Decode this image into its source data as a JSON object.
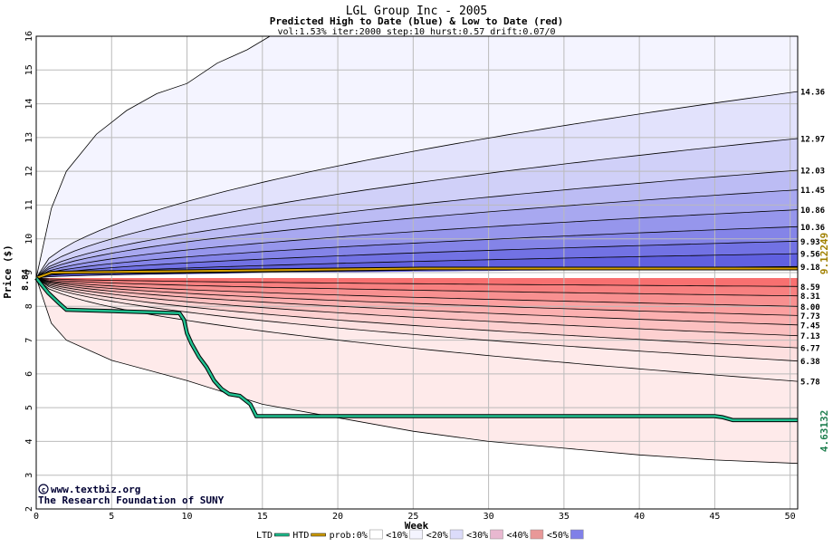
{
  "chart_data": {
    "type": "area",
    "title": "LGL Group Inc - 2005",
    "subtitle": "Predicted High to Date (blue) &  Low to Date (red)",
    "params": "vol:1.53% iter:2000 step:10 hurst:0.57 drift:0.07/0",
    "xlabel": "Week",
    "ylabel": "Price ($)",
    "xlim": [
      0,
      50.5
    ],
    "ylim": [
      2,
      16
    ],
    "x_ticks": [
      0,
      5,
      10,
      15,
      20,
      25,
      30,
      35,
      40,
      45,
      50
    ],
    "y_ticks": [
      2,
      3,
      4,
      5,
      6,
      7,
      8,
      9,
      10,
      11,
      12,
      13,
      14,
      15,
      16
    ],
    "grid": true,
    "start_price": 8.84,
    "start_price_label": "8.84",
    "high_bands": [
      {
        "end": 14.36,
        "label": "14.36"
      },
      {
        "end": 12.97,
        "label": "12.97"
      },
      {
        "end": 12.03,
        "label": "12.03"
      },
      {
        "end": 11.45,
        "label": "11.45"
      },
      {
        "end": 10.86,
        "label": "10.86"
      },
      {
        "end": 10.36,
        "label": "10.36"
      },
      {
        "end": 9.93,
        "label": "9.93"
      },
      {
        "end": 9.56,
        "label": "9.56"
      },
      {
        "end": 9.18,
        "label": "9.18"
      }
    ],
    "low_bands": [
      {
        "end": 8.59,
        "label": "8.59"
      },
      {
        "end": 8.31,
        "label": "8.31"
      },
      {
        "end": 8.0,
        "label": "8.00"
      },
      {
        "end": 7.73,
        "label": "7.73"
      },
      {
        "end": 7.45,
        "label": "7.45"
      },
      {
        "end": 7.13,
        "label": "7.13"
      },
      {
        "end": 6.77,
        "label": "6.77"
      },
      {
        "end": 6.38,
        "label": "6.38"
      },
      {
        "end": 5.78,
        "label": "5.78"
      }
    ],
    "outer_high": {
      "x": [
        0,
        1,
        2,
        4,
        6,
        8,
        10,
        12,
        14,
        15.5
      ],
      "y": [
        8.84,
        10.9,
        12.0,
        13.1,
        13.8,
        14.3,
        14.6,
        15.2,
        15.6,
        16
      ]
    },
    "outer_low": {
      "x": [
        0,
        1,
        2,
        5,
        10,
        15,
        20,
        25,
        30,
        35,
        40,
        45,
        50.5
      ],
      "y": [
        8.84,
        7.5,
        7.0,
        6.4,
        5.8,
        5.1,
        4.7,
        4.3,
        4.0,
        3.8,
        3.6,
        3.45,
        3.35
      ]
    },
    "ltd_series": {
      "name": "LTD",
      "color": "#20c090",
      "x": [
        0,
        0.8,
        1.5,
        2.0,
        9.5,
        9.8,
        10.0,
        10.3,
        10.8,
        11.3,
        11.8,
        12.3,
        12.8,
        13.5,
        14.2,
        14.6,
        20,
        25,
        30,
        35,
        40,
        45,
        45.5,
        46.2,
        50.5
      ],
      "y": [
        8.84,
        8.4,
        8.1,
        7.9,
        7.8,
        7.6,
        7.2,
        6.9,
        6.5,
        6.2,
        5.8,
        5.55,
        5.4,
        5.35,
        5.1,
        4.75,
        4.75,
        4.75,
        4.75,
        4.75,
        4.75,
        4.75,
        4.72,
        4.63,
        4.63
      ]
    },
    "htd_series": {
      "name": "HTD",
      "color": "#d4a000",
      "x": [
        0,
        1,
        25.5,
        50.5
      ],
      "y": [
        8.84,
        9.0,
        9.12,
        9.12
      ]
    },
    "high_value_label": "9.12249",
    "low_value_label": "4.63132",
    "colors": {
      "high_fill": [
        "#f4f4ff",
        "#e2e2fc",
        "#d0d0f8",
        "#bcbcf4",
        "#a8a8f0",
        "#9696ec",
        "#8484e8",
        "#7272e4",
        "#6060e0"
      ],
      "low_fill": [
        "#f87070",
        "#f88080",
        "#f89090",
        "#fca0a0",
        "#fcb0b0",
        "#fcc0c0",
        "#fdd0d0",
        "#fde0e0",
        "#feeaea"
      ],
      "band_line": "#000000",
      "htd_label": "#a08000",
      "ltd_label": "#208050"
    },
    "legend": {
      "items": [
        {
          "name": "LTD",
          "kind": "line",
          "color": "#20c090"
        },
        {
          "name": "HTD",
          "kind": "line",
          "color": "#d4a000"
        },
        {
          "name": "prob:0%",
          "kind": "swatch",
          "color": "#ffffff"
        },
        {
          "name": "<10%",
          "kind": "swatch",
          "color": "#f4f4ff"
        },
        {
          "name": "<20%",
          "kind": "swatch",
          "color": "#dcdcfa"
        },
        {
          "name": "<30%",
          "kind": "swatch",
          "color": "#e8b8d0"
        },
        {
          "name": "<40%",
          "kind": "swatch",
          "color": "#e89898"
        },
        {
          "name": "<50%",
          "kind": "swatch",
          "color": "#8080e8"
        }
      ]
    },
    "watermark_site": "www.textbiz.org",
    "watermark_org": "The Research Foundation of SUNY"
  }
}
